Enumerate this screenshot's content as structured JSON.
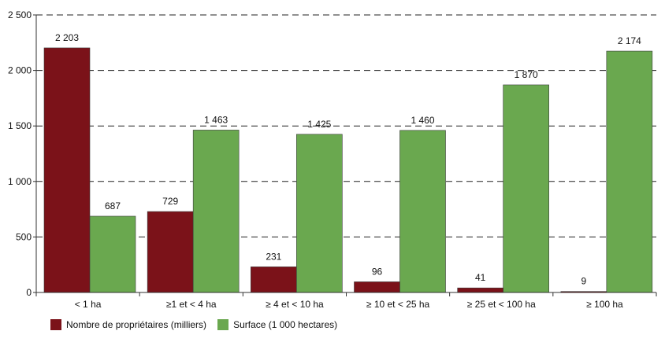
{
  "chart_data": {
    "type": "bar",
    "categories": [
      "< 1 ha",
      "≥1 et < 4 ha",
      "≥ 4 et < 10 ha",
      "≥ 10 et < 25 ha",
      "≥ 25 et < 100 ha",
      "≥ 100 ha"
    ],
    "series": [
      {
        "name": "Nombre de propriétaires (milliers)",
        "color": "#7b1219",
        "values": [
          2203,
          729,
          231,
          96,
          41,
          9
        ],
        "labels": [
          "2 203",
          "729",
          "231",
          "96",
          "41",
          "9"
        ]
      },
      {
        "name": "Surface (1 000 hectares)",
        "color": "#6aa84f",
        "values": [
          687,
          1463,
          1425,
          1460,
          1870,
          2174
        ],
        "labels": [
          "687",
          "1 463",
          "1 425",
          "1 460",
          "1 870",
          "2 174"
        ]
      }
    ],
    "ylim": [
      0,
      2500
    ],
    "yticks": [
      0,
      500,
      1000,
      1500,
      2000,
      2500
    ],
    "ytick_labels": [
      "0",
      "500",
      "1 000",
      "1 500",
      "2 000",
      "2 500"
    ],
    "grid": "dashed horizontal",
    "legend_position": "bottom-left"
  }
}
